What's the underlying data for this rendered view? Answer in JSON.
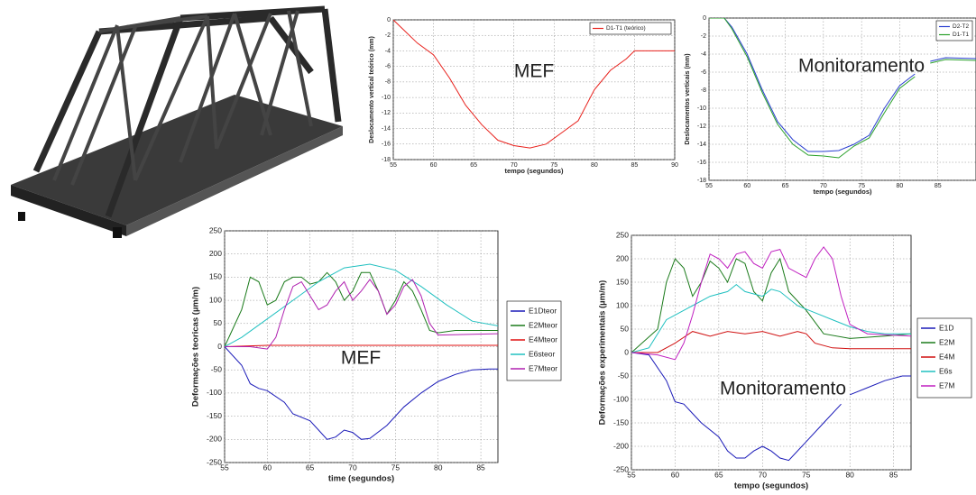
{
  "chart_data": [
    {
      "type": "line",
      "annotation": "MEF",
      "xlabel": "tempo (segundos)",
      "ylabel": "Deslocamento vertical teórico (mm)",
      "xlim": [
        55,
        90
      ],
      "ylim": [
        -18,
        0
      ],
      "xticks": [
        55,
        60,
        65,
        70,
        75,
        80,
        85,
        90
      ],
      "yticks": [
        0,
        -2,
        -4,
        -6,
        -8,
        -10,
        -12,
        -14,
        -16,
        -18
      ],
      "grid": true,
      "legend": "upper right",
      "series": [
        {
          "name": "D1-T1 (teórico)",
          "color": "#e8211c",
          "x": [
            55,
            56,
            58,
            60,
            62,
            64,
            66,
            68,
            70,
            72,
            74,
            76,
            78,
            80,
            82,
            84,
            85,
            90
          ],
          "values": [
            0,
            -1,
            -3,
            -4.5,
            -7.5,
            -11,
            -13.5,
            -15.5,
            -16.2,
            -16.5,
            -16,
            -14.5,
            -13,
            -9,
            -6.5,
            -5,
            -4,
            -4
          ]
        }
      ]
    },
    {
      "type": "line",
      "annotation": "Monitoramento",
      "xlabel": "tempo (segundos)",
      "ylabel": "Deslocamentos verticais (mm)",
      "xlim": [
        55,
        90
      ],
      "ylim": [
        -18,
        0
      ],
      "xticks": [
        55,
        60,
        65,
        70,
        75,
        80,
        85
      ],
      "yticks": [
        0,
        -2,
        -4,
        -6,
        -8,
        -10,
        -12,
        -14,
        -16,
        -18
      ],
      "grid": true,
      "legend": "upper right",
      "series": [
        {
          "name": "D2-T2",
          "color": "#2a3fd0",
          "x": [
            55,
            57,
            58,
            60,
            62,
            64,
            66,
            68,
            70,
            72,
            74,
            76,
            78,
            80,
            82,
            83,
            84,
            86,
            90
          ],
          "values": [
            0,
            0,
            -1,
            -4,
            -8,
            -11.5,
            -13.5,
            -14.8,
            -14.8,
            -14.7,
            -14,
            -13,
            -10,
            -7.5,
            -6.2,
            null,
            -4.8,
            -4.4,
            -4.5
          ]
        },
        {
          "name": "D1-T1",
          "color": "#2aa02a",
          "x": [
            55,
            57,
            58,
            60,
            62,
            64,
            66,
            68,
            70,
            72,
            74,
            76,
            78,
            80,
            82,
            83,
            84,
            86,
            90
          ],
          "values": [
            0,
            0,
            -1.2,
            -4.3,
            -8.3,
            -11.8,
            -14,
            -15.2,
            -15.3,
            -15.5,
            -14.2,
            -13.3,
            -10.5,
            -7.8,
            -6.5,
            null,
            -5,
            -4.6,
            -4.7
          ]
        }
      ]
    },
    {
      "type": "line",
      "annotation": "MEF",
      "xlabel": "time (segundos)",
      "ylabel": "Deformações teoricas (µm/m)",
      "xlim": [
        55,
        87
      ],
      "ylim": [
        -250,
        250
      ],
      "xticks": [
        55,
        60,
        65,
        70,
        75,
        80,
        85
      ],
      "yticks": [
        250,
        200,
        150,
        100,
        50,
        0,
        -50,
        -100,
        -150,
        -200,
        -250
      ],
      "grid": true,
      "legend": "outside right",
      "series": [
        {
          "name": "E1Dteor",
          "color": "#1a1ab8",
          "x": [
            55,
            57,
            58,
            59,
            60,
            62,
            63,
            65,
            66,
            67,
            68,
            69,
            70,
            71,
            72,
            74,
            76,
            78,
            80,
            82,
            84,
            86,
            87
          ],
          "values": [
            0,
            -40,
            -80,
            -90,
            -95,
            -120,
            -145,
            -160,
            -180,
            -200,
            -195,
            -180,
            -185,
            -200,
            -198,
            -170,
            -130,
            -100,
            -75,
            -60,
            -50,
            -48,
            -48
          ]
        },
        {
          "name": "E2Mteor",
          "color": "#1a7a1a",
          "x": [
            55,
            57,
            58,
            59,
            60,
            61,
            62,
            63,
            64,
            65,
            66,
            67,
            68,
            69,
            70,
            71,
            72,
            73,
            74,
            75,
            76,
            77,
            78,
            79,
            80,
            82,
            87
          ],
          "values": [
            0,
            80,
            150,
            140,
            90,
            100,
            140,
            150,
            150,
            135,
            140,
            160,
            140,
            100,
            120,
            160,
            160,
            120,
            70,
            100,
            140,
            120,
            80,
            35,
            30,
            35,
            35
          ]
        },
        {
          "name": "E4Mteor",
          "color": "#e01010",
          "x": [
            55,
            60,
            65,
            70,
            75,
            80,
            87
          ],
          "values": [
            0,
            3,
            3,
            3,
            3,
            3,
            3
          ]
        },
        {
          "name": "E6steor",
          "color": "#20c0c0",
          "x": [
            55,
            57,
            60,
            63,
            66,
            69,
            72,
            75,
            78,
            81,
            84,
            87
          ],
          "values": [
            0,
            20,
            60,
            100,
            140,
            170,
            178,
            165,
            130,
            90,
            55,
            45
          ]
        },
        {
          "name": "E7Mteor",
          "color": "#b020b0",
          "x": [
            55,
            58,
            60,
            61,
            62,
            63,
            64,
            65,
            66,
            67,
            68,
            69,
            70,
            71,
            72,
            73,
            74,
            75,
            76,
            77,
            78,
            79,
            80,
            87
          ],
          "values": [
            0,
            0,
            -5,
            20,
            80,
            130,
            140,
            110,
            80,
            90,
            120,
            140,
            100,
            120,
            145,
            120,
            70,
            90,
            130,
            145,
            110,
            50,
            25,
            28
          ]
        }
      ]
    },
    {
      "type": "line",
      "annotation": "Monitoramento",
      "xlabel": "tempo (segundos)",
      "ylabel": "Deformações experimentais (µm/m)",
      "xlim": [
        55,
        87
      ],
      "ylim": [
        -250,
        250
      ],
      "xticks": [
        55,
        60,
        65,
        70,
        75,
        80,
        85
      ],
      "yticks": [
        250,
        200,
        150,
        100,
        50,
        0,
        -50,
        -100,
        -150,
        -200,
        -250
      ],
      "grid": true,
      "legend": "outside right",
      "series": [
        {
          "name": "E1D",
          "color": "#1a1ab8",
          "x": [
            55,
            57,
            59,
            60,
            61,
            62,
            63,
            65,
            66,
            67,
            68,
            69,
            70,
            71,
            72,
            73,
            75,
            77,
            79,
            79.5,
            80,
            82,
            84,
            86,
            87
          ],
          "values": [
            0,
            -5,
            -60,
            -105,
            -110,
            -130,
            -150,
            -180,
            -210,
            -225,
            -225,
            -210,
            -200,
            -210,
            -225,
            -230,
            -190,
            -150,
            -110,
            null,
            -90,
            -75,
            -60,
            -50,
            -50
          ]
        },
        {
          "name": "E2M",
          "color": "#1a7a1a",
          "x": [
            55,
            58,
            59,
            60,
            61,
            62,
            63,
            64,
            65,
            66,
            67,
            68,
            69,
            70,
            71,
            72,
            73,
            75,
            77,
            80,
            84,
            87
          ],
          "values": [
            0,
            50,
            150,
            200,
            180,
            120,
            150,
            195,
            180,
            150,
            200,
            190,
            130,
            110,
            170,
            200,
            130,
            90,
            40,
            30,
            35,
            40
          ]
        },
        {
          "name": "E4M",
          "color": "#d01010",
          "x": [
            55,
            58,
            60,
            62,
            64,
            66,
            68,
            70,
            72,
            74,
            75,
            76,
            78,
            80,
            87
          ],
          "values": [
            0,
            0,
            20,
            45,
            35,
            45,
            40,
            45,
            35,
            45,
            40,
            20,
            10,
            8,
            8
          ]
        },
        {
          "name": "E6s",
          "color": "#20c0c0",
          "x": [
            55,
            57,
            59,
            60,
            62,
            64,
            66,
            67,
            68,
            70,
            71,
            72,
            74,
            76,
            78,
            80,
            82,
            84,
            87
          ],
          "values": [
            0,
            10,
            70,
            80,
            100,
            120,
            130,
            145,
            130,
            120,
            135,
            130,
            100,
            85,
            70,
            55,
            45,
            40,
            40
          ]
        },
        {
          "name": "E7M",
          "color": "#c020c0",
          "x": [
            55,
            58,
            60,
            61,
            62,
            63,
            64,
            65,
            66,
            67,
            68,
            69,
            70,
            71,
            72,
            73,
            75,
            76,
            77,
            78,
            79,
            80,
            82,
            87
          ],
          "values": [
            0,
            -5,
            -15,
            20,
            80,
            150,
            210,
            200,
            180,
            210,
            215,
            190,
            180,
            215,
            220,
            180,
            160,
            200,
            225,
            200,
            120,
            60,
            40,
            35
          ]
        }
      ]
    }
  ]
}
